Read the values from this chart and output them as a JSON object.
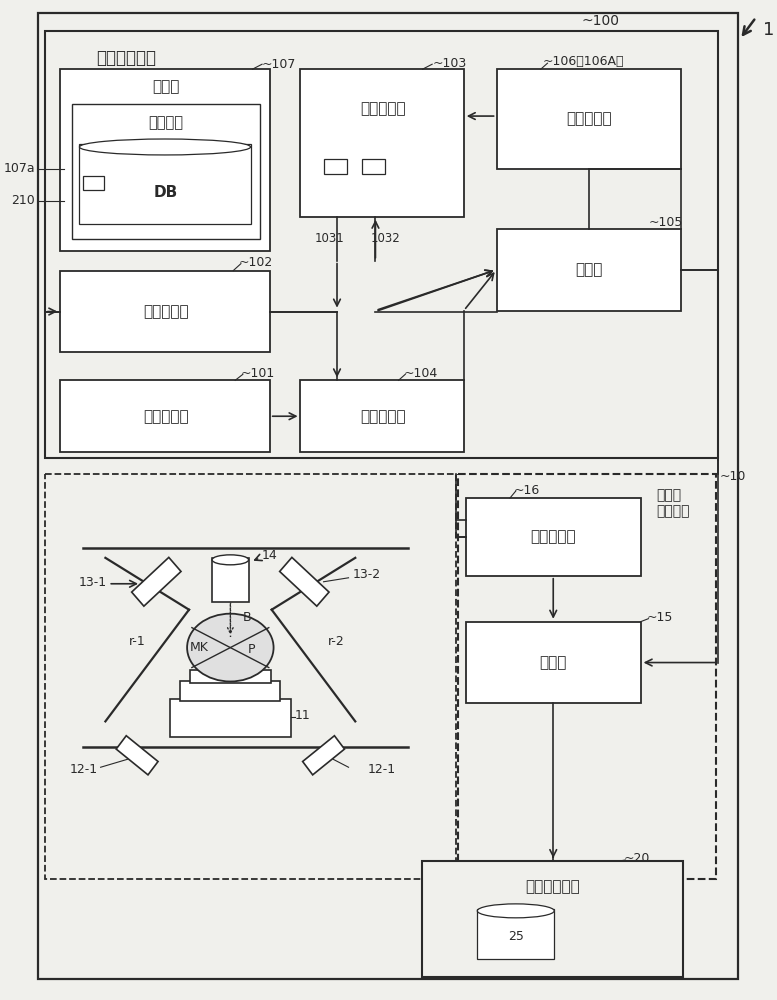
{
  "bg_color": "#f0f0ec",
  "line_color": "#2a2a2a",
  "box_fill": "#ffffff",
  "info_device_label": "信息处理装置",
  "radiation_label": "放射线\n照射装置",
  "ref_100": "100",
  "ref_1": "1",
  "ref_10": "10",
  "ref_107": "107",
  "ref_107a": "107a",
  "ref_210": "210",
  "ref_103": "103",
  "ref_106": "106（106A）",
  "ref_102": "102",
  "ref_1031": "1031",
  "ref_1032": "1032",
  "ref_105": "105",
  "ref_101": "101",
  "ref_104": "104",
  "ref_16": "16",
  "ref_15": "15",
  "ref_20": "20",
  "ref_25": "25",
  "ref_14": "14",
  "ref_13_1": "13-1",
  "ref_13_2": "13-2",
  "ref_12_1a": "12-1",
  "ref_12_1b": "12-1",
  "ref_11": "11",
  "ref_r1": "r-1",
  "ref_r2": "r-2",
  "ref_B": "B",
  "ref_MK": "MK",
  "ref_P": "P",
  "box_107_label": "存储部",
  "box_107_inner_label": "模板信息",
  "box_107_db": "DB",
  "box_103_label": "输入显示部",
  "box_106_label": "显示处理部",
  "box_102_label": "图像取得部",
  "box_105_label": "追踪部",
  "box_101_label": "模板取得部",
  "box_104_label": "模板选择部",
  "box_16_label": "输入显示部",
  "box_15_label": "控制部",
  "box_20_label": "计划管理装置"
}
